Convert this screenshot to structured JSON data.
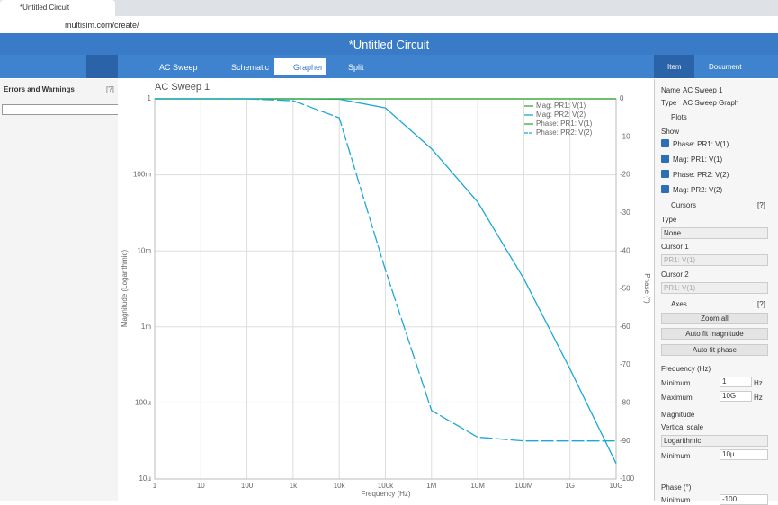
{
  "browser": {
    "tab_title": "*Untitled Circuit",
    "url": "multisim.com/create/"
  },
  "app": {
    "title": "*Untitled Circuit"
  },
  "toolbar": {
    "run_mode": "AC Sweep",
    "tabs": [
      "Schematic",
      "Grapher",
      "Split"
    ]
  },
  "left_panel": {
    "title": "Errors and Warnings",
    "help": "[?]"
  },
  "right_panel": {
    "tabs": [
      "Item",
      "Document"
    ],
    "name_label": "Name",
    "name_value": "AC Sweep 1",
    "type_label": "Type",
    "type_value": "AC Sweep Graph",
    "plots_section": "Plots",
    "show_label": "Show",
    "plots": [
      "Phase: PR1: V(1)",
      "Mag: PR1: V(1)",
      "Phase: PR2: V(2)",
      "Mag: PR2: V(2)"
    ],
    "cursors_section": "Cursors",
    "cursors_help": "[?]",
    "cursor_type_label": "Type",
    "cursor_type_value": "None",
    "cursor1_label": "Cursor 1",
    "cursor1_value": "PR1: V(1)",
    "cursor2_label": "Cursor 2",
    "cursor2_value": "PR1: V(1)",
    "axes_section": "Axes",
    "axes_help": "[?]",
    "buttons": [
      "Zoom all",
      "Auto fit magnitude",
      "Auto fit phase"
    ],
    "frequency_label": "Frequency (Hz)",
    "freq_min_label": "Minimum",
    "freq_min_value": "1",
    "freq_min_unit": "Hz",
    "freq_max_label": "Maximum",
    "freq_max_value": "10G",
    "freq_max_unit": "Hz",
    "magnitude_label": "Magnitude",
    "vertical_scale_label": "Vertical scale",
    "vertical_scale_value": "Logarithmic",
    "mag_min_label": "Minimum",
    "mag_min_value": "10µ",
    "phase_label": "Phase (°)",
    "phase_min_label": "Minimum",
    "phase_min_value": "-100"
  },
  "chart_data": {
    "type": "line",
    "title": "AC Sweep 1",
    "x_label": "Frequency (Hz)",
    "y_label": "Magnitude (Logarithmic)",
    "y2_label": "Phase (°)",
    "x_log": true,
    "y_log": true,
    "grid": true,
    "x": [
      1,
      10,
      100,
      1000,
      10000,
      100000,
      1000000,
      10000000,
      100000000,
      1000000000,
      10000000000
    ],
    "xlim": [
      1,
      10000000000
    ],
    "xticks": [
      {
        "value": 1,
        "label": "1"
      },
      {
        "value": 10,
        "label": "10"
      },
      {
        "value": 100,
        "label": "100"
      },
      {
        "value": 1000,
        "label": "1k"
      },
      {
        "value": 10000,
        "label": "10k"
      },
      {
        "value": 100000,
        "label": "100k"
      },
      {
        "value": 1000000,
        "label": "1M"
      },
      {
        "value": 10000000,
        "label": "10M"
      },
      {
        "value": 100000000,
        "label": "100M"
      },
      {
        "value": 1000000000,
        "label": "1G"
      },
      {
        "value": 10000000000,
        "label": "10G"
      }
    ],
    "ylim": [
      1e-05,
      1
    ],
    "yticks": [
      1,
      {
        "value": 0.1,
        "label": "100m"
      },
      {
        "value": 0.01,
        "label": "10m"
      },
      {
        "value": 0.001,
        "label": "1m"
      },
      {
        "value": 0.0001,
        "label": "100µ"
      },
      {
        "value": 1e-05,
        "label": "10µ"
      }
    ],
    "y2lim": [
      -100,
      0
    ],
    "y2ticks": [
      0,
      -10,
      -20,
      -30,
      -40,
      -50,
      -60,
      -70,
      -80,
      -90,
      -100
    ],
    "series": [
      {
        "name": "Mag: PR1: V(1)",
        "color": "#3aa83a",
        "values": [
          1,
          1,
          1,
          1,
          1,
          1,
          1,
          1,
          1,
          1,
          1
        ]
      },
      {
        "name": "Mag: PR2: V(2)",
        "color": "#1ba8d8",
        "values": [
          1,
          1,
          1,
          1,
          0.99,
          0.76,
          0.22,
          0.044,
          0.0043,
          0.00028,
          1.6e-05
        ]
      },
      {
        "name": "Phase: PR1: V(1)",
        "color": "#3aa83a",
        "axis": "y2",
        "values": [
          0,
          0,
          0,
          0,
          0,
          0,
          0,
          0,
          0,
          0,
          0
        ]
      },
      {
        "name": "Phase: PR2: V(2)",
        "color": "#1ba8d8",
        "axis": "y2",
        "dashed": true,
        "values": [
          0,
          0,
          0,
          -0.5,
          -5,
          -45,
          -82,
          -89,
          -90,
          -90,
          -90
        ]
      }
    ]
  }
}
